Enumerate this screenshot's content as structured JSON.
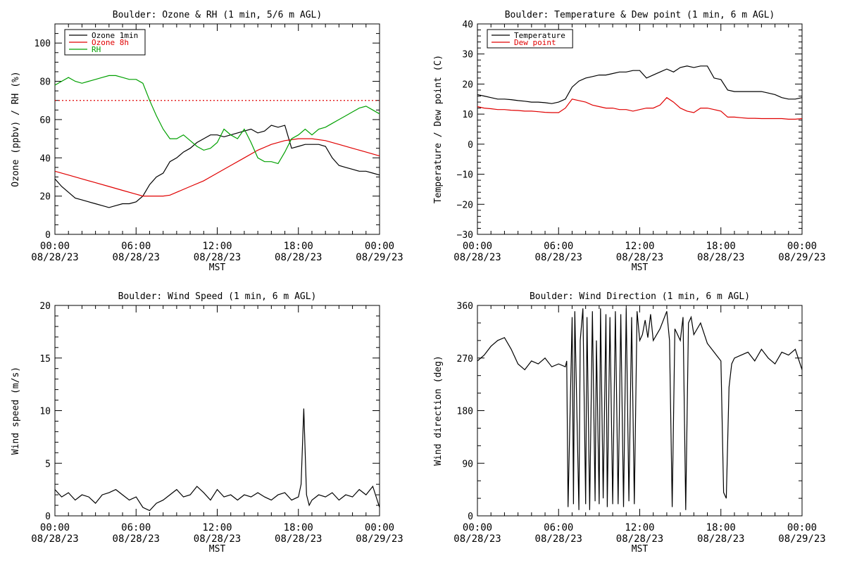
{
  "chart_data": [
    {
      "type": "line",
      "title": "Boulder: Ozone & RH (1 min, 5/6 m AGL)",
      "ylabel": "Ozone (ppbv) / RH (%)",
      "xlabel": "MST",
      "xlim": [
        0,
        24
      ],
      "ylim": [
        0,
        110
      ],
      "yticks": [
        "0",
        "20",
        "40",
        "60",
        "80",
        "100"
      ],
      "ytick_values": [
        0,
        20,
        40,
        60,
        80,
        100
      ],
      "xticks": [
        {
          "time": "00:00",
          "date": "08/28/23"
        },
        {
          "time": "06:00",
          "date": "08/28/23"
        },
        {
          "time": "12:00",
          "date": "08/28/23"
        },
        {
          "time": "18:00",
          "date": "08/28/23"
        },
        {
          "time": "00:00",
          "date": "08/29/23"
        }
      ],
      "reference_line": {
        "y": 70,
        "color": "#e00000",
        "style": "dotted"
      },
      "legend": "top-left",
      "series": [
        {
          "name": "Ozone 1min",
          "color": "#000000",
          "x": [
            0,
            0.5,
            1,
            1.5,
            2,
            2.5,
            3,
            3.5,
            4,
            4.5,
            5,
            5.5,
            6,
            6.5,
            7,
            7.5,
            8,
            8.5,
            9,
            9.5,
            10,
            10.5,
            11,
            11.5,
            12,
            12.5,
            13,
            13.5,
            14,
            14.5,
            15,
            15.5,
            16,
            16.5,
            17,
            17.5,
            18,
            18.5,
            19,
            19.5,
            20,
            20.5,
            21,
            21.5,
            22,
            22.5,
            23,
            23.5,
            24
          ],
          "y": [
            29,
            25,
            22,
            19,
            18,
            17,
            16,
            15,
            14,
            15,
            16,
            16,
            17,
            20,
            26,
            30,
            32,
            38,
            40,
            43,
            45,
            48,
            50,
            52,
            52,
            51,
            52,
            53,
            54,
            55,
            53,
            54,
            57,
            56,
            57,
            45,
            46,
            47,
            47,
            47,
            46,
            40,
            36,
            35,
            34,
            33,
            33,
            32,
            31
          ]
        },
        {
          "name": "Ozone 8h",
          "color": "#e00000",
          "x": [
            0,
            1,
            2,
            3,
            4,
            5,
            6,
            6.5,
            7,
            7.5,
            8,
            8.5,
            9,
            10,
            11,
            12,
            13,
            14,
            15,
            16,
            17,
            18,
            19,
            20,
            21,
            22,
            23,
            24
          ],
          "y": [
            33,
            31,
            29,
            27,
            25,
            23,
            21,
            20,
            20,
            20,
            20,
            20.5,
            22,
            25,
            28,
            32,
            36,
            40,
            44,
            47,
            49,
            50,
            50,
            49,
            47,
            45,
            43,
            41
          ]
        },
        {
          "name": "RH",
          "color": "#00a000",
          "x": [
            0,
            0.5,
            1,
            1.5,
            2,
            2.5,
            3,
            3.5,
            4,
            4.5,
            5,
            5.5,
            6,
            6.5,
            7,
            7.5,
            8,
            8.5,
            9,
            9.5,
            10,
            10.5,
            11,
            11.5,
            12,
            12.5,
            13,
            13.5,
            14,
            14.5,
            15,
            15.5,
            16,
            16.5,
            17,
            17.5,
            18,
            18.5,
            19,
            19.5,
            20,
            20.5,
            21,
            21.5,
            22,
            22.5,
            23,
            23.5,
            24
          ],
          "y": [
            78,
            80,
            82,
            80,
            79,
            80,
            81,
            82,
            83,
            83,
            82,
            81,
            81,
            79,
            70,
            62,
            55,
            50,
            50,
            52,
            49,
            46,
            44,
            45,
            48,
            55,
            52,
            50,
            55,
            48,
            40,
            38,
            38,
            37,
            43,
            50,
            52,
            55,
            52,
            55,
            56,
            58,
            60,
            62,
            64,
            66,
            67,
            65,
            63
          ]
        }
      ]
    },
    {
      "type": "line",
      "title": "Boulder: Temperature & Dew point (1 min, 6 m AGL)",
      "ylabel": "Temperature / Dew point (C)",
      "xlabel": "MST",
      "xlim": [
        0,
        24
      ],
      "ylim": [
        -30,
        40
      ],
      "yticks": [
        "−30",
        "−20",
        "−10",
        "0",
        "10",
        "20",
        "30",
        "40"
      ],
      "ytick_values": [
        -30,
        -20,
        -10,
        0,
        10,
        20,
        30,
        40
      ],
      "xticks": [
        {
          "time": "00:00",
          "date": "08/28/23"
        },
        {
          "time": "06:00",
          "date": "08/28/23"
        },
        {
          "time": "12:00",
          "date": "08/28/23"
        },
        {
          "time": "18:00",
          "date": "08/28/23"
        },
        {
          "time": "00:00",
          "date": "08/29/23"
        }
      ],
      "legend": "top-left",
      "series": [
        {
          "name": "Temperature",
          "color": "#000000",
          "x": [
            0,
            0.5,
            1,
            1.5,
            2,
            2.5,
            3,
            3.5,
            4,
            4.5,
            5,
            5.5,
            6,
            6.5,
            7,
            7.5,
            8,
            8.5,
            9,
            9.5,
            10,
            10.5,
            11,
            11.5,
            12,
            12.5,
            13,
            13.5,
            14,
            14.5,
            15,
            15.5,
            16,
            16.5,
            17,
            17.5,
            18,
            18.5,
            19,
            19.5,
            20,
            20.5,
            21,
            21.5,
            22,
            22.5,
            23,
            23.5,
            24
          ],
          "y": [
            16.5,
            16,
            15.5,
            15,
            15,
            14.8,
            14.5,
            14.3,
            14,
            14,
            13.8,
            13.5,
            14,
            15,
            19,
            21,
            22,
            22.5,
            23,
            23,
            23.5,
            24,
            24,
            24.5,
            24.5,
            22,
            23,
            24,
            25,
            24,
            25.5,
            26,
            25.5,
            26,
            26,
            22,
            21.5,
            18,
            17.5,
            17.5,
            17.5,
            17.5,
            17.5,
            17,
            16.5,
            15.5,
            15,
            15,
            15.5
          ]
        },
        {
          "name": "Dew point",
          "color": "#e00000",
          "x": [
            0,
            0.5,
            1,
            1.5,
            2,
            2.5,
            3,
            3.5,
            4,
            4.5,
            5,
            5.5,
            6,
            6.5,
            7,
            7.5,
            8,
            8.5,
            9,
            9.5,
            10,
            10.5,
            11,
            11.5,
            12,
            12.5,
            13,
            13.5,
            14,
            14.5,
            15,
            15.5,
            16,
            16.5,
            17,
            17.5,
            18,
            18.5,
            19,
            19.5,
            20,
            20.5,
            21,
            21.5,
            22,
            22.5,
            23,
            23.5,
            24
          ],
          "y": [
            12.5,
            12,
            11.8,
            11.5,
            11.5,
            11.3,
            11.2,
            11,
            11,
            10.8,
            10.6,
            10.5,
            10.5,
            12,
            15,
            14.5,
            14,
            13,
            12.5,
            12,
            12,
            11.5,
            11.5,
            11,
            11.5,
            12,
            12,
            13,
            15.5,
            14,
            12,
            11,
            10.5,
            12,
            12,
            11.5,
            11,
            9,
            9,
            8.8,
            8.6,
            8.6,
            8.5,
            8.5,
            8.5,
            8.5,
            8.3,
            8.3,
            8.5
          ]
        }
      ]
    },
    {
      "type": "line",
      "title": "Boulder: Wind Speed (1 min, 6 m AGL)",
      "ylabel": "Wind speed (m/s)",
      "xlabel": "MST",
      "xlim": [
        0,
        24
      ],
      "ylim": [
        0,
        20
      ],
      "yticks": [
        "0",
        "5",
        "10",
        "15",
        "20"
      ],
      "ytick_values": [
        0,
        5,
        10,
        15,
        20
      ],
      "xticks": [
        {
          "time": "00:00",
          "date": "08/28/23"
        },
        {
          "time": "06:00",
          "date": "08/28/23"
        },
        {
          "time": "12:00",
          "date": "08/28/23"
        },
        {
          "time": "18:00",
          "date": "08/28/23"
        },
        {
          "time": "00:00",
          "date": "08/29/23"
        }
      ],
      "series": [
        {
          "color": "#000000",
          "x": [
            0,
            0.5,
            1,
            1.5,
            2,
            2.5,
            3,
            3.5,
            4,
            4.5,
            5,
            5.5,
            6,
            6.5,
            7,
            7.5,
            8,
            8.5,
            9,
            9.5,
            10,
            10.5,
            11,
            11.5,
            12,
            12.5,
            13,
            13.5,
            14,
            14.5,
            15,
            15.5,
            16,
            16.5,
            17,
            17.5,
            18,
            18.2,
            18.4,
            18.6,
            18.8,
            19,
            19.5,
            20,
            20.5,
            21,
            21.5,
            22,
            22.5,
            23,
            23.5,
            24
          ],
          "y": [
            2.5,
            1.8,
            2.2,
            1.5,
            2,
            1.8,
            1.2,
            2,
            2.2,
            2.5,
            2,
            1.5,
            1.8,
            0.8,
            0.5,
            1.2,
            1.5,
            2,
            2.5,
            1.8,
            2,
            2.8,
            2.2,
            1.5,
            2.5,
            1.8,
            2,
            1.5,
            2,
            1.8,
            2.2,
            1.8,
            1.5,
            2,
            2.2,
            1.5,
            1.8,
            3,
            10.2,
            2,
            1,
            1.5,
            2,
            1.8,
            2.2,
            1.5,
            2,
            1.8,
            2.5,
            2,
            2.8,
            0.8
          ]
        }
      ]
    },
    {
      "type": "line",
      "title": "Boulder: Wind Direction (1 min, 6 m AGL)",
      "ylabel": "Wind direction (deg)",
      "xlabel": "MST",
      "xlim": [
        0,
        24
      ],
      "ylim": [
        0,
        360
      ],
      "yticks": [
        "0",
        "90",
        "180",
        "270",
        "360"
      ],
      "ytick_values": [
        0,
        90,
        180,
        270,
        360
      ],
      "xticks": [
        {
          "time": "00:00",
          "date": "08/28/23"
        },
        {
          "time": "06:00",
          "date": "08/28/23"
        },
        {
          "time": "12:00",
          "date": "08/28/23"
        },
        {
          "time": "18:00",
          "date": "08/28/23"
        },
        {
          "time": "00:00",
          "date": "08/29/23"
        }
      ],
      "series": [
        {
          "color": "#000000",
          "x": [
            0,
            0.5,
            1,
            1.5,
            2,
            2.5,
            3,
            3.5,
            4,
            4.5,
            5,
            5.5,
            6,
            6.5,
            6.6,
            6.7,
            7,
            7.1,
            7.2,
            7.5,
            7.6,
            7.8,
            8,
            8.1,
            8.3,
            8.5,
            8.7,
            8.8,
            9,
            9.1,
            9.3,
            9.5,
            9.6,
            9.8,
            10,
            10.2,
            10.4,
            10.6,
            10.8,
            11,
            11.2,
            11.4,
            11.6,
            11.8,
            12,
            12.2,
            12.4,
            12.6,
            12.8,
            13,
            13.5,
            14,
            14.2,
            14.4,
            14.6,
            15,
            15.2,
            15.4,
            15.6,
            15.8,
            16,
            16.5,
            17,
            17.5,
            18,
            18.2,
            18.4,
            18.6,
            18.8,
            19,
            19.5,
            20,
            20.5,
            21,
            21.5,
            22,
            22.5,
            23,
            23.5,
            24
          ],
          "y": [
            265,
            275,
            290,
            300,
            305,
            285,
            260,
            250,
            265,
            260,
            270,
            255,
            260,
            255,
            265,
            15,
            340,
            20,
            350,
            10,
            300,
            355,
            20,
            340,
            10,
            350,
            25,
            300,
            20,
            355,
            30,
            345,
            15,
            340,
            20,
            350,
            20,
            345,
            15,
            355,
            25,
            340,
            20,
            350,
            300,
            310,
            335,
            305,
            345,
            300,
            320,
            350,
            300,
            15,
            320,
            300,
            340,
            10,
            330,
            340,
            310,
            330,
            295,
            280,
            265,
            40,
            30,
            220,
            260,
            270,
            275,
            280,
            265,
            285,
            270,
            260,
            280,
            275,
            285,
            250
          ]
        }
      ]
    }
  ]
}
